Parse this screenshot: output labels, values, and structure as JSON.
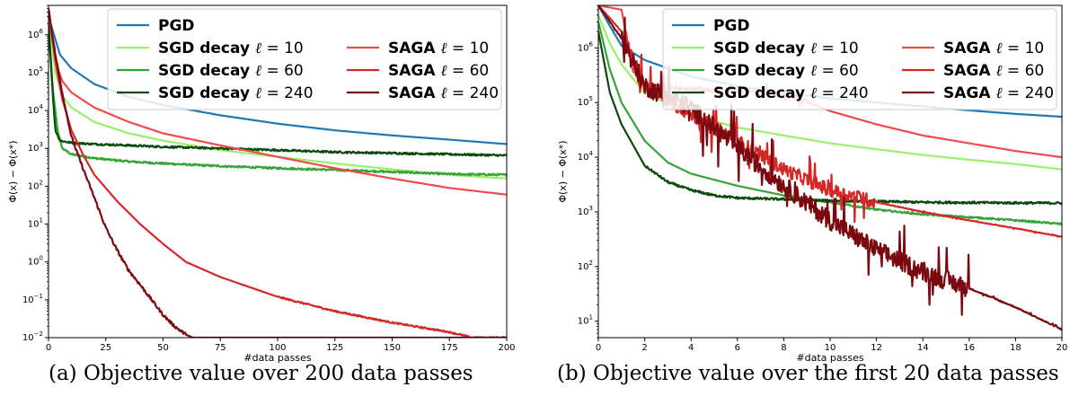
{
  "legend_entries": [
    {
      "name": "PGD",
      "color": "#1f77b4"
    },
    {
      "name": "SGD decay ℓ = 10",
      "color": "#9af06a"
    },
    {
      "name": "SGD decay ℓ = 60",
      "color": "#36a336"
    },
    {
      "name": "SGD decay ℓ = 240",
      "color": "#0a4a0a"
    },
    {
      "name": "SAGA ℓ = 10",
      "color": "#f04a4a"
    },
    {
      "name": "SAGA ℓ = 60",
      "color": "#d42828"
    },
    {
      "name": "SAGA ℓ = 240",
      "color": "#7a0a10"
    }
  ],
  "chart_data": [
    {
      "type": "line",
      "caption": "(a) Objective value over 200 data passes",
      "xlabel": "#data passes",
      "ylabel": "Φ(x) − Φ(x*)",
      "xlim": [
        0,
        200
      ],
      "ylim": [
        0.01,
        6000000
      ],
      "yscale": "log",
      "xticks": [
        "0",
        "25",
        "50",
        "75",
        "100",
        "125",
        "150",
        "175",
        "200"
      ],
      "yticks": [
        "10^-2",
        "10^-1",
        "10^0",
        "10^1",
        "10^2",
        "10^3",
        "10^4",
        "10^5",
        "10^6"
      ],
      "legend_loc": "top-right",
      "series": [
        {
          "name": "PGD",
          "x": [
            0,
            5,
            10,
            20,
            35,
            50,
            75,
            100,
            125,
            150,
            175,
            200
          ],
          "y": [
            3000000,
            300000,
            130000,
            50000,
            23000,
            14000,
            7500,
            4500,
            3000,
            2200,
            1700,
            1300
          ]
        },
        {
          "name": "SGD decay ℓ = 10",
          "x": [
            0,
            3,
            6,
            10,
            20,
            35,
            50,
            75,
            100,
            125,
            150,
            175,
            200
          ],
          "y": [
            3000000,
            100000,
            25000,
            12000,
            5000,
            2500,
            1600,
            900,
            600,
            400,
            280,
            200,
            160
          ]
        },
        {
          "name": "SGD decay ℓ = 60",
          "x": [
            0,
            2,
            4,
            6,
            10,
            20,
            35,
            50,
            75,
            100,
            125,
            150,
            175,
            200
          ],
          "y": [
            2000000,
            30000,
            3000,
            1000,
            700,
            550,
            450,
            400,
            340,
            300,
            270,
            240,
            210,
            200
          ]
        },
        {
          "name": "SGD decay ℓ = 240",
          "x": [
            0,
            1,
            2,
            3,
            5,
            10,
            20,
            35,
            50,
            75,
            100,
            125,
            150,
            175,
            200
          ],
          "y": [
            2000000,
            200000,
            20000,
            3000,
            1600,
            1400,
            1300,
            1200,
            1100,
            1000,
            900,
            800,
            750,
            700,
            650
          ]
        },
        {
          "name": "SAGA ℓ = 10",
          "x": [
            0,
            3,
            6,
            10,
            20,
            35,
            50,
            75,
            100,
            125,
            150,
            175,
            200
          ],
          "y": [
            4000000,
            200000,
            60000,
            30000,
            12000,
            5000,
            2500,
            1200,
            600,
            300,
            160,
            90,
            60
          ]
        },
        {
          "name": "SAGA ℓ = 60",
          "x": [
            0,
            3,
            6,
            10,
            15,
            20,
            30,
            40,
            50,
            60,
            75,
            100,
            125,
            150,
            175,
            185,
            200
          ],
          "y": [
            5000000,
            200000,
            20000,
            3000,
            700,
            200,
            40,
            10,
            3,
            1,
            0.4,
            0.12,
            0.05,
            0.025,
            0.014,
            0.01,
            0.01
          ]
        },
        {
          "name": "SAGA ℓ = 240",
          "x": [
            0,
            3,
            6,
            10,
            15,
            20,
            25,
            30,
            35,
            40,
            45,
            50,
            55,
            60,
            63
          ],
          "y": [
            5000000,
            300000,
            30000,
            2000,
            300,
            50,
            8,
            2,
            0.6,
            0.25,
            0.1,
            0.04,
            0.02,
            0.012,
            0.01
          ]
        }
      ]
    },
    {
      "type": "line",
      "caption": "(b) Objective value over the first 20 data passes",
      "xlabel": "#data passes",
      "ylabel": "Φ(x) − Φ(x*)",
      "xlim": [
        0,
        20
      ],
      "ylim": [
        5,
        6000000
      ],
      "yscale": "log",
      "xticks": [
        "0",
        "2",
        "4",
        "6",
        "8",
        "10",
        "12",
        "14",
        "16",
        "18",
        "20"
      ],
      "yticks": [
        "10^1",
        "10^2",
        "10^3",
        "10^4",
        "10^5",
        "10^6"
      ],
      "legend_loc": "top-right",
      "series": [
        {
          "name": "PGD",
          "x": [
            0,
            0.5,
            1,
            2,
            4,
            6,
            8,
            10,
            12,
            14,
            16,
            18,
            20
          ],
          "y": [
            6000000,
            2500000,
            1100000,
            600000,
            300000,
            200000,
            150000,
            120000,
            100000,
            85000,
            72000,
            62000,
            55000
          ]
        },
        {
          "name": "SGD decay ℓ = 10",
          "x": [
            0,
            0.5,
            1,
            2,
            4,
            6,
            8,
            10,
            12,
            14,
            16,
            18,
            20
          ],
          "y": [
            4000000,
            1200000,
            500000,
            150000,
            60000,
            35000,
            25000,
            18000,
            14000,
            11000,
            9000,
            7500,
            6000
          ]
        },
        {
          "name": "SGD decay ℓ = 60",
          "x": [
            0,
            0.5,
            1,
            2,
            3,
            4,
            6,
            8,
            10,
            12,
            14,
            16,
            18,
            20
          ],
          "y": [
            3000000,
            400000,
            100000,
            20000,
            8000,
            5000,
            3000,
            2000,
            1500,
            1100,
            900,
            800,
            700,
            600
          ]
        },
        {
          "name": "SGD decay ℓ = 240",
          "x": [
            0,
            0.5,
            1,
            2,
            3,
            4,
            5,
            6,
            8,
            10,
            12,
            14,
            16,
            18,
            20
          ],
          "y": [
            2000000,
            150000,
            40000,
            7000,
            3500,
            2500,
            2000,
            1800,
            1700,
            1600,
            1550,
            1500,
            1480,
            1460,
            1450
          ]
        },
        {
          "name": "SAGA ℓ = 10",
          "x": [
            0,
            1,
            1.5,
            2,
            4,
            6,
            8,
            10,
            12,
            14,
            16,
            18,
            20
          ],
          "y": [
            6000000,
            5000000,
            400000,
            200000,
            180000,
            160000,
            150000,
            70000,
            40000,
            25000,
            18000,
            13000,
            10000
          ]
        },
        {
          "name": "SAGA ℓ = 60",
          "x": [
            0,
            1,
            2,
            4,
            6,
            8,
            10,
            12,
            14,
            16,
            18,
            20
          ],
          "y": [
            6000000,
            2000000,
            200000,
            60000,
            20000,
            6000,
            2500,
            1500,
            1000,
            700,
            500,
            350
          ]
        },
        {
          "name": "SAGA ℓ = 240",
          "x": [
            0,
            1,
            2,
            4,
            6,
            8,
            10,
            12,
            14,
            16,
            18,
            20
          ],
          "y": [
            6000000,
            1500000,
            200000,
            80000,
            15000,
            3000,
            700,
            200,
            80,
            40,
            18,
            7
          ]
        }
      ]
    }
  ]
}
